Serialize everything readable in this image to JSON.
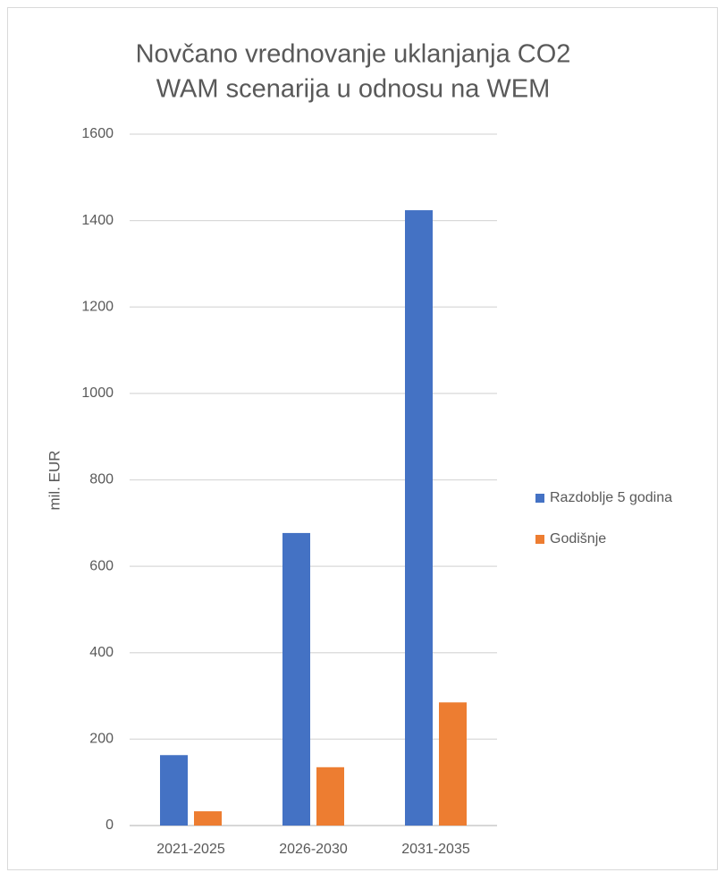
{
  "chart_data": {
    "type": "bar",
    "title": [
      "Novčano vrednovanje uklanjanja CO2",
      "WAM scenarija u odnosu na WEM"
    ],
    "y_label": "mil. EUR",
    "categories": [
      "2021-2025",
      "2026-2030",
      "2031-2035"
    ],
    "series": [
      {
        "name": "Razdoblje 5 godina",
        "color": "#4472c4",
        "values": [
          163,
          677,
          1424
        ]
      },
      {
        "name": "Godišnje",
        "color": "#ed7d31",
        "values": [
          33,
          135,
          285
        ]
      }
    ],
    "ylim": [
      0,
      1600
    ],
    "yticks": [
      0,
      200,
      400,
      600,
      800,
      1000,
      1200,
      1400,
      1600
    ],
    "grid": true,
    "legend": "right"
  }
}
